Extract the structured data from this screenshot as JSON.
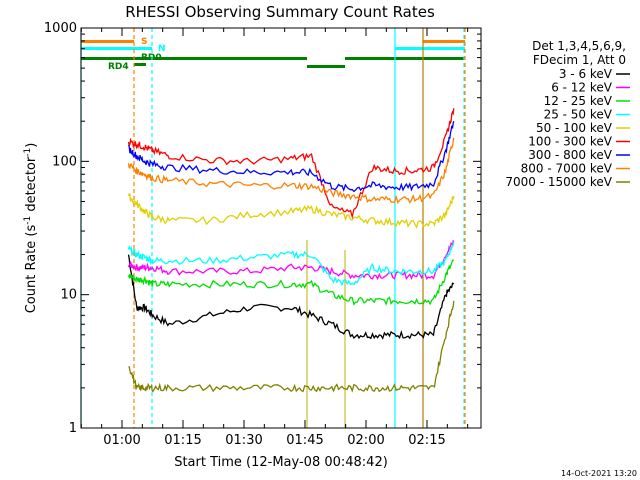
{
  "chart_data": {
    "type": "line",
    "title": "RHESSI Observing Summary Count Rates",
    "xlabel": "Start Time (12-May-08 00:48:42)",
    "ylabel_main": "Count Rate (s",
    "ylabel_sup": "-1",
    "ylabel_rest": " detector",
    "ylabel_sup2": "-1",
    "ylabel_end": ")",
    "y_scale": "log",
    "ylim": [
      1,
      1000
    ],
    "x_tick_labels": [
      "01:00",
      "01:15",
      "01:30",
      "01:45",
      "02:00",
      "02:15"
    ],
    "y_tick_labels": [
      "1",
      "10",
      "100",
      "1000"
    ],
    "legend": {
      "placement": "right",
      "header": [
        "Det 1,3,4,5,6,9,",
        "FDecim 1, Att 0"
      ],
      "entries": [
        {
          "label": "3 - 6 keV",
          "color": "#000000"
        },
        {
          "label": "6 - 12 keV",
          "color": "#ff00ff"
        },
        {
          "label": "12 - 25 keV",
          "color": "#00e000"
        },
        {
          "label": "25 - 50 keV",
          "color": "#00ffff"
        },
        {
          "label": "50 - 100 keV",
          "color": "#e0d000"
        },
        {
          "label": "100 - 300 keV",
          "color": "#ff0000"
        },
        {
          "label": "300 - 800 keV",
          "color": "#0000ff"
        },
        {
          "label": "800 - 7000 keV",
          "color": "#ff8000"
        },
        {
          "label": "7000 - 15000 keV",
          "color": "#808000"
        }
      ]
    },
    "series": [
      {
        "name": "3 - 6 keV",
        "color": "#000000",
        "x": [
          0.0,
          2.0,
          4.0,
          6.0,
          10.0,
          20.0,
          30.0,
          40.0,
          45.0,
          50.0,
          55.0,
          60.0,
          65.0,
          70.0,
          75.0,
          78.0,
          80.0
        ],
        "y": [
          20,
          8,
          8,
          7,
          6,
          7,
          8,
          8,
          7,
          6,
          5,
          5,
          5,
          5,
          5,
          10,
          12
        ]
      },
      {
        "name": "6 - 12 keV",
        "color": "#ff00ff",
        "x": [
          0.0,
          2.0,
          4.0,
          6.0,
          10.0,
          20.0,
          30.0,
          40.0,
          45.0,
          50.0,
          55.0,
          60.0,
          65.0,
          70.0,
          75.0,
          78.0,
          80.0
        ],
        "y": [
          17,
          16,
          16,
          16,
          15,
          15,
          15,
          16,
          16,
          15,
          14,
          14,
          14,
          14,
          14,
          20,
          25
        ]
      },
      {
        "name": "12 - 25 keV",
        "color": "#00e000",
        "x": [
          0.0,
          2.0,
          4.0,
          6.0,
          10.0,
          20.0,
          30.0,
          40.0,
          45.0,
          50.0,
          55.0,
          60.0,
          65.0,
          70.0,
          75.0,
          78.0,
          80.0
        ],
        "y": [
          14,
          13,
          13,
          12,
          12,
          12,
          12,
          12,
          12,
          10,
          9,
          9,
          9,
          9,
          9,
          14,
          18
        ]
      },
      {
        "name": "25 - 50 keV",
        "color": "#00ffff",
        "x": [
          0.0,
          2.0,
          4.0,
          6.0,
          10.0,
          20.0,
          30.0,
          40.0,
          45.0,
          50.0,
          55.0,
          60.0,
          65.0,
          70.0,
          75.0,
          78.0,
          80.0
        ],
        "y": [
          22,
          20,
          19,
          18,
          18,
          18,
          19,
          20,
          20,
          13,
          12,
          16,
          15,
          15,
          15,
          18,
          25
        ]
      },
      {
        "name": "50 - 100 keV",
        "color": "#e0d000",
        "x": [
          0.0,
          2.0,
          4.0,
          6.0,
          10.0,
          20.0,
          30.0,
          40.0,
          45.0,
          50.0,
          55.0,
          60.0,
          65.0,
          70.0,
          75.0,
          78.0,
          80.0
        ],
        "y": [
          55,
          48,
          42,
          38,
          36,
          36,
          40,
          42,
          44,
          40,
          38,
          36,
          35,
          34,
          34,
          40,
          55
        ]
      },
      {
        "name": "100 - 300 keV",
        "color": "#ff0000",
        "x": [
          0.0,
          2.0,
          4.0,
          6.0,
          10.0,
          20.0,
          30.0,
          40.0,
          45.0,
          50.0,
          55.0,
          60.0,
          65.0,
          70.0,
          75.0,
          78.0,
          80.0
        ],
        "y": [
          140,
          135,
          128,
          120,
          110,
          102,
          100,
          105,
          110,
          45,
          40,
          90,
          85,
          85,
          90,
          150,
          250
        ]
      },
      {
        "name": "300 - 800 keV",
        "color": "#0000ff",
        "x": [
          0.0,
          2.0,
          4.0,
          6.0,
          10.0,
          20.0,
          30.0,
          40.0,
          45.0,
          50.0,
          55.0,
          60.0,
          65.0,
          70.0,
          75.0,
          78.0,
          80.0
        ],
        "y": [
          125,
          110,
          100,
          95,
          90,
          86,
          83,
          83,
          82,
          65,
          62,
          66,
          64,
          64,
          68,
          120,
          200
        ]
      },
      {
        "name": "800 - 7000 keV",
        "color": "#ff8000",
        "x": [
          0.0,
          2.0,
          4.0,
          6.0,
          10.0,
          20.0,
          30.0,
          40.0,
          45.0,
          50.0,
          55.0,
          60.0,
          65.0,
          70.0,
          75.0,
          78.0,
          80.0
        ],
        "y": [
          95,
          85,
          80,
          75,
          72,
          68,
          66,
          66,
          65,
          58,
          55,
          52,
          52,
          52,
          55,
          85,
          150
        ]
      },
      {
        "name": "7000 - 15000 keV",
        "color": "#808000",
        "x": [
          0.0,
          2.0,
          4.0,
          6.0,
          10.0,
          20.0,
          30.0,
          40.0,
          45.0,
          50.0,
          55.0,
          60.0,
          65.0,
          70.0,
          75.0,
          78.0,
          80.0
        ],
        "y": [
          3,
          2,
          2,
          2,
          2,
          2,
          2,
          2,
          2,
          2,
          2,
          2,
          2,
          2,
          2,
          5,
          9
        ]
      }
    ],
    "flags": {
      "labels": [
        "S",
        "N",
        "RD0",
        "RD4"
      ],
      "colors": {
        "S": "#ff8000",
        "N": "#00ffff",
        "RD": "#008000"
      }
    },
    "grid": false
  },
  "footer": {
    "timestamp": "14-Oct-2021 13:20"
  }
}
